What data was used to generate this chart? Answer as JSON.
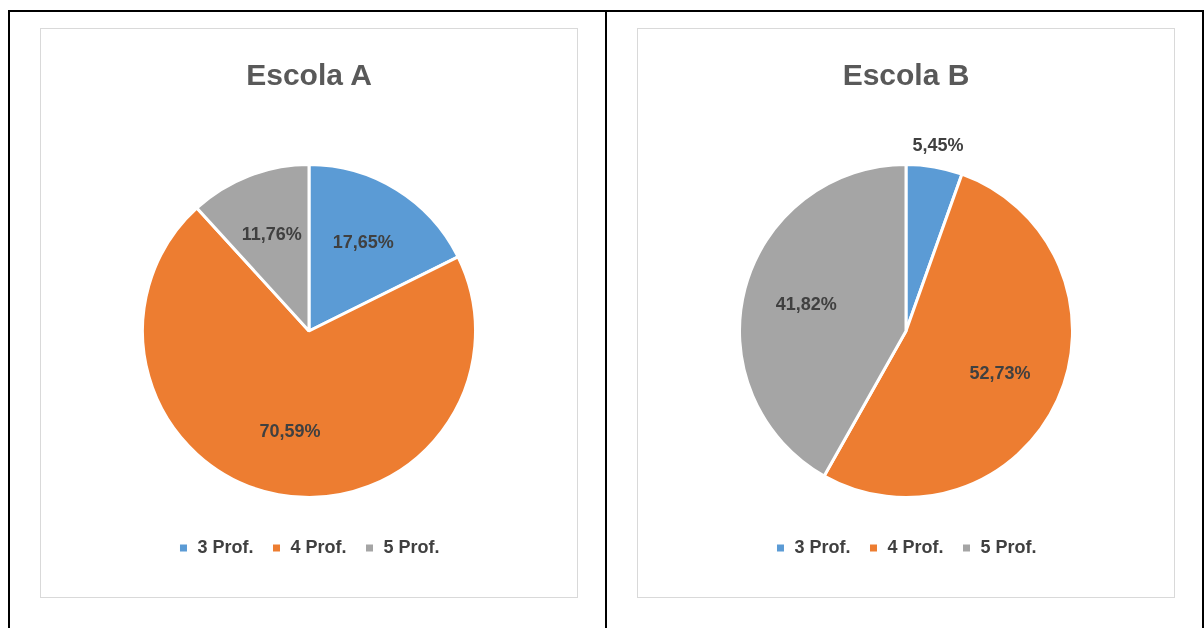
{
  "chart_data": [
    {
      "type": "pie",
      "title": "Escola A",
      "categories": [
        "3 Prof.",
        "4 Prof.",
        "5 Prof."
      ],
      "values": [
        17.65,
        70.59,
        11.76
      ],
      "colors": [
        "#5b9bd5",
        "#ed7d31",
        "#a5a5a5"
      ],
      "value_labels": [
        "17,65%",
        "70,59%",
        "11,76%"
      ],
      "legend": "bottom"
    },
    {
      "type": "pie",
      "title": "Escola B",
      "categories": [
        "3 Prof.",
        "4 Prof.",
        "5 Prof."
      ],
      "values": [
        5.45,
        52.73,
        41.82
      ],
      "colors": [
        "#5b9bd5",
        "#ed7d31",
        "#a5a5a5"
      ],
      "value_labels": [
        "5,45%",
        "52,73%",
        "41,82%"
      ],
      "legend": "bottom"
    }
  ]
}
